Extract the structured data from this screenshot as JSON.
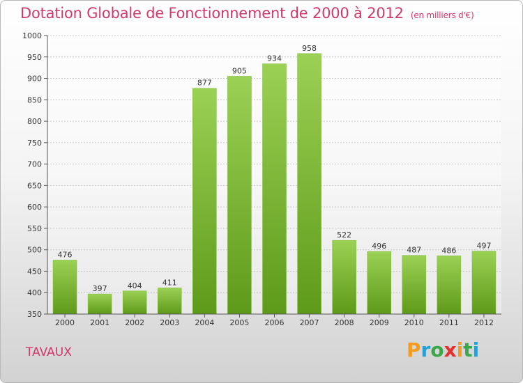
{
  "title": "Dotation Globale de Fonctionnement de 2000 à 2012",
  "subtitle": "(en milliers d'€)",
  "commune": "TAVAUX",
  "logo": {
    "letters": [
      "P",
      "r",
      "o",
      "x",
      "i",
      "t",
      "i"
    ],
    "colors": [
      "#f39c1f",
      "#2a9fd6",
      "#3aa84a",
      "#e4312b",
      "#f39c1f",
      "#3aa84a",
      "#2a9fd6"
    ]
  },
  "colors": {
    "accent": "#d0396e",
    "bar_top": "#9bd154",
    "bar_bottom": "#5e9a1a"
  },
  "chart_data": {
    "type": "bar",
    "categories": [
      "2000",
      "2001",
      "2002",
      "2003",
      "2004",
      "2005",
      "2006",
      "2007",
      "2008",
      "2009",
      "2010",
      "2011",
      "2012"
    ],
    "values": [
      476,
      397,
      404,
      411,
      877,
      905,
      934,
      958,
      522,
      496,
      487,
      486,
      497
    ],
    "data_labels": [
      "476",
      "397",
      "404",
      "411",
      "877",
      "905",
      "934",
      "958",
      "522",
      "496",
      "487",
      "486",
      "497"
    ],
    "title": "Dotation Globale de Fonctionnement de 2000 à 2012",
    "xlabel": "",
    "ylabel": "",
    "ylim": [
      350,
      1000
    ],
    "yticks": [
      350,
      400,
      450,
      500,
      550,
      600,
      650,
      700,
      750,
      800,
      850,
      900,
      950,
      1000
    ],
    "grid": true,
    "legend": "none"
  }
}
